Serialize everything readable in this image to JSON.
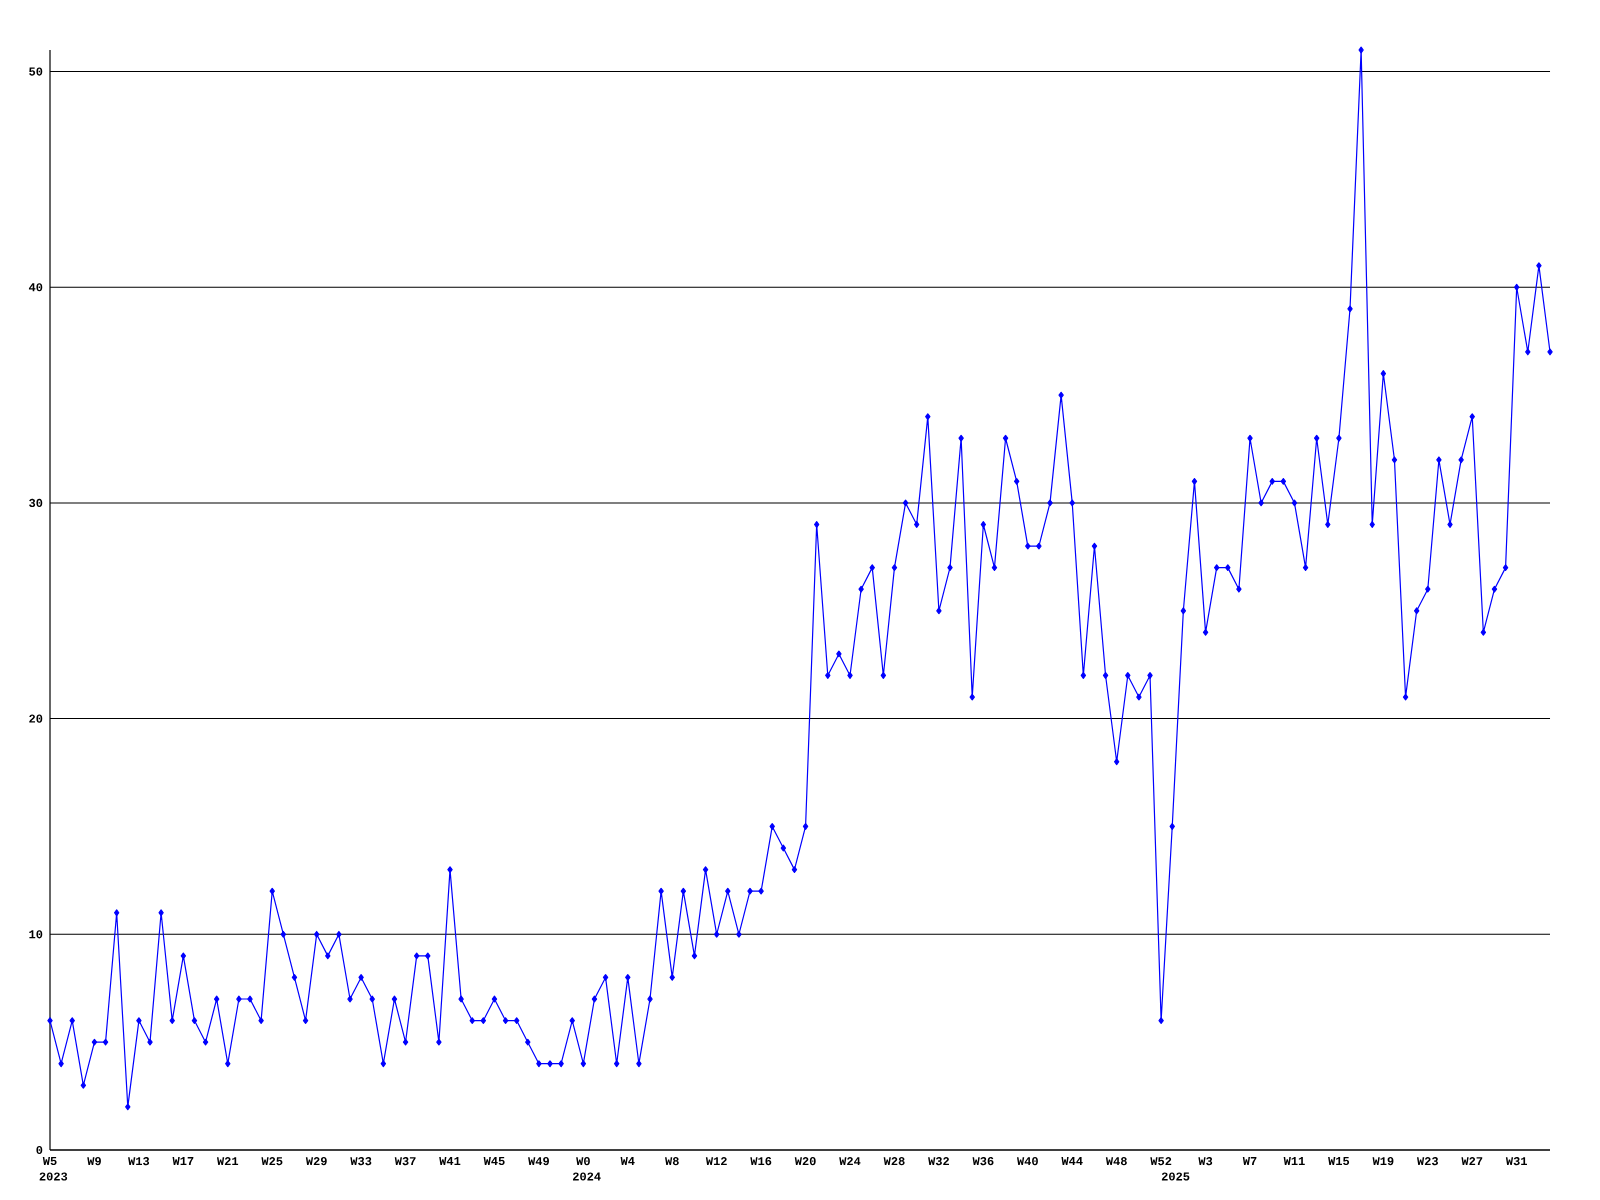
{
  "chart_data": {
    "type": "line",
    "color": "#0000ff",
    "marker": "diamond",
    "grid": "y",
    "categories": [
      "W5",
      null,
      null,
      null,
      "W9",
      null,
      null,
      null,
      "W13",
      null,
      null,
      null,
      "W17",
      null,
      null,
      null,
      "W21",
      null,
      null,
      null,
      "W25",
      null,
      null,
      null,
      "W29",
      null,
      null,
      null,
      "W33",
      null,
      null,
      null,
      "W37",
      null,
      null,
      null,
      "W41",
      null,
      null,
      null,
      "W45",
      null,
      null,
      null,
      "W49",
      null,
      null,
      null,
      "W0",
      null,
      null,
      null,
      "W4",
      null,
      null,
      null,
      "W8",
      null,
      null,
      null,
      "W12",
      null,
      null,
      null,
      "W16",
      null,
      null,
      null,
      "W20",
      null,
      null,
      null,
      "W24",
      null,
      null,
      null,
      "W28",
      null,
      null,
      null,
      "W32",
      null,
      null,
      null,
      "W36",
      null,
      null,
      null,
      "W40",
      null,
      null,
      null,
      "W44",
      null,
      null,
      null,
      "W48",
      null,
      null,
      null,
      "W52",
      null,
      null,
      null,
      "W3",
      null,
      null,
      null,
      "W7",
      null,
      null,
      null,
      "W11",
      null,
      null,
      null,
      "W15",
      null,
      null,
      null,
      "W19",
      null,
      null,
      null,
      "W23",
      null,
      null,
      null,
      "W27",
      null,
      null,
      null,
      "W31",
      null,
      null,
      null
    ],
    "values": [
      6,
      4,
      6,
      3,
      5,
      5,
      11,
      2,
      6,
      5,
      11,
      6,
      9,
      6,
      5,
      7,
      4,
      7,
      7,
      6,
      12,
      10,
      8,
      6,
      10,
      9,
      10,
      7,
      8,
      7,
      4,
      7,
      5,
      9,
      9,
      5,
      13,
      7,
      6,
      6,
      7,
      6,
      6,
      5,
      4,
      4,
      4,
      6,
      4,
      7,
      8,
      4,
      8,
      4,
      7,
      12,
      8,
      12,
      9,
      13,
      10,
      12,
      10,
      12,
      12,
      15,
      14,
      13,
      15,
      29,
      22,
      23,
      22,
      26,
      27,
      22,
      27,
      30,
      29,
      34,
      25,
      27,
      33,
      21,
      29,
      27,
      33,
      31,
      28,
      28,
      30,
      35,
      30,
      22,
      28,
      22,
      18,
      22,
      21,
      22,
      6,
      15,
      25,
      31,
      24,
      27,
      27,
      26,
      33,
      30,
      31,
      31,
      30,
      27,
      33,
      29,
      33,
      39,
      51,
      29,
      36,
      32,
      21,
      25,
      26,
      32,
      29,
      32,
      34,
      24,
      26,
      27,
      40,
      37,
      41,
      37
    ],
    "ylim": [
      0,
      51
    ],
    "yticks": [
      0,
      10,
      20,
      30,
      40,
      50
    ],
    "annotations": [
      "2023",
      "2024",
      "2025"
    ]
  }
}
